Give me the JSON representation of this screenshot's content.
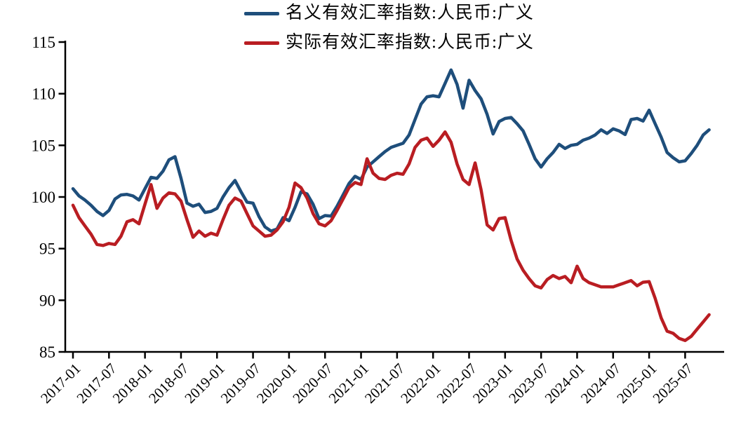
{
  "chart_data": {
    "type": "line",
    "title": "",
    "ylim": [
      85,
      115
    ],
    "y_ticks": [
      85,
      90,
      95,
      100,
      105,
      110,
      115
    ],
    "x_tick_labels": [
      "2017-01",
      "2017-07",
      "2018-01",
      "2018-07",
      "2019-01",
      "2019-07",
      "2020-01",
      "2020-07",
      "2021-01",
      "2021-07",
      "2022-01",
      "2022-07",
      "2023-01",
      "2023-07",
      "2024-01",
      "2024-07",
      "2025-01",
      "2025-07"
    ],
    "x_frequency": "monthly",
    "x_start": "2017-01",
    "x_end": "2025-11",
    "legend_position": "top-center",
    "grid": "off",
    "axis_color": "#000000",
    "series": [
      {
        "name": "名义有效汇率指数:人民币:广义",
        "color": "#1E4E7B",
        "values": [
          100.8,
          100.1,
          99.7,
          99.2,
          98.6,
          98.2,
          98.7,
          99.8,
          100.2,
          100.25,
          100.1,
          99.7,
          100.8,
          101.9,
          101.8,
          102.5,
          103.6,
          103.9,
          101.8,
          99.4,
          99.1,
          99.3,
          98.5,
          98.6,
          98.9,
          100.0,
          100.9,
          101.6,
          100.5,
          99.5,
          99.4,
          98.1,
          97.1,
          96.7,
          96.9,
          98.0,
          97.7,
          99.0,
          100.5,
          100.3,
          99.3,
          97.9,
          98.2,
          98.15,
          99.1,
          100.2,
          101.3,
          102.0,
          101.7,
          102.9,
          103.4,
          103.9,
          104.4,
          104.8,
          105.0,
          105.2,
          106.0,
          107.5,
          109.0,
          109.7,
          109.8,
          109.7,
          111.0,
          112.3,
          110.9,
          108.6,
          111.3,
          110.3,
          109.5,
          108.0,
          106.1,
          107.3,
          107.6,
          107.7,
          107.1,
          106.4,
          105.1,
          103.7,
          102.9,
          103.7,
          104.3,
          105.1,
          104.7,
          105.0,
          105.1,
          105.5,
          105.7,
          106.0,
          106.5,
          106.15,
          106.6,
          106.4,
          106.05,
          107.5,
          107.6,
          107.35,
          108.4,
          107.1,
          105.8,
          104.3,
          103.8,
          103.4,
          103.5,
          104.2,
          105.0,
          106.0,
          106.5
        ]
      },
      {
        "name": "实际有效汇率指数:人民币:广义",
        "color": "#B91D22",
        "values": [
          99.2,
          98.0,
          97.2,
          96.4,
          95.4,
          95.3,
          95.5,
          95.4,
          96.2,
          97.6,
          97.8,
          97.4,
          99.3,
          101.2,
          98.9,
          99.9,
          100.4,
          100.3,
          99.6,
          97.8,
          96.1,
          96.7,
          96.2,
          96.5,
          96.3,
          97.8,
          99.2,
          99.9,
          99.6,
          98.4,
          97.2,
          96.7,
          96.2,
          96.3,
          96.8,
          97.6,
          99.0,
          101.35,
          100.9,
          99.9,
          98.4,
          97.4,
          97.2,
          97.7,
          98.7,
          99.8,
          100.9,
          101.4,
          101.2,
          103.7,
          102.3,
          101.8,
          101.7,
          102.1,
          102.3,
          102.2,
          103.2,
          104.8,
          105.5,
          105.7,
          104.9,
          105.5,
          106.3,
          105.3,
          103.2,
          101.7,
          101.2,
          103.3,
          100.7,
          97.3,
          96.8,
          97.9,
          98.0,
          95.8,
          94.0,
          92.9,
          92.1,
          91.4,
          91.2,
          92.0,
          92.4,
          92.1,
          92.3,
          91.7,
          93.3,
          92.1,
          91.7,
          91.5,
          91.3,
          91.3,
          91.3,
          91.5,
          91.7,
          91.9,
          91.4,
          91.75,
          91.8,
          90.2,
          88.3,
          87.0,
          86.8,
          86.3,
          86.1,
          86.5,
          87.2,
          87.9,
          88.6
        ]
      }
    ]
  }
}
